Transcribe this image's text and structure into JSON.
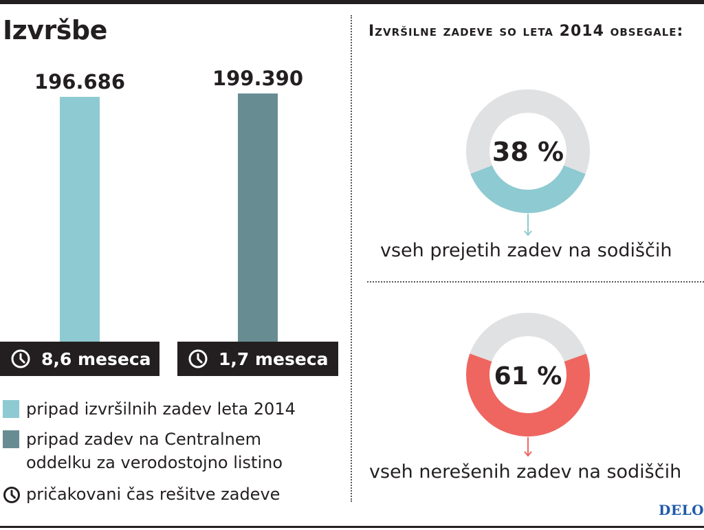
{
  "title": "Izvršbe",
  "right_title": "Izvršilne zadeve so leta 2014 obsegale:",
  "legend": {
    "item1": "pripad izvršilnih zadev leta 2014",
    "item2": "pripad zadev na Centralnem oddelku za verodostojno listino",
    "item3": "pričakovani čas rešitve zadeve"
  },
  "donuts": [
    {
      "label": "38 %",
      "value": 38,
      "caption": "vseh prejetih zadev na sodiščih",
      "color": "#8ecad1",
      "track": "#e0e1e2"
    },
    {
      "label": "61 %",
      "value": 61,
      "caption": "vseh nerešenih zadev na sodiščih",
      "color": "#ef6660",
      "track": "#e0e1e2"
    }
  ],
  "brand": "DELO",
  "icons": {
    "time": "clock-icon"
  },
  "chart_data": [
    {
      "type": "bar",
      "categories": [
        "pripad izvršilnih zadev leta 2014",
        "pripad zadev na Centralnem oddelku za verodostojno listino"
      ],
      "values": [
        196686,
        199390
      ],
      "value_labels": [
        "196.686",
        "199.390"
      ],
      "time_labels": [
        "8,6 meseca",
        "1,7 meseca"
      ],
      "colors": [
        "#8ecad1",
        "#678d92"
      ]
    },
    {
      "type": "pie",
      "variant": "donut",
      "values": [
        38,
        62
      ],
      "value_label": "38 %",
      "colors": [
        "#8ecad1",
        "#e0e1e2"
      ]
    },
    {
      "type": "pie",
      "variant": "donut",
      "values": [
        61,
        39
      ],
      "value_label": "61 %",
      "colors": [
        "#ef6660",
        "#e0e1e2"
      ]
    }
  ]
}
